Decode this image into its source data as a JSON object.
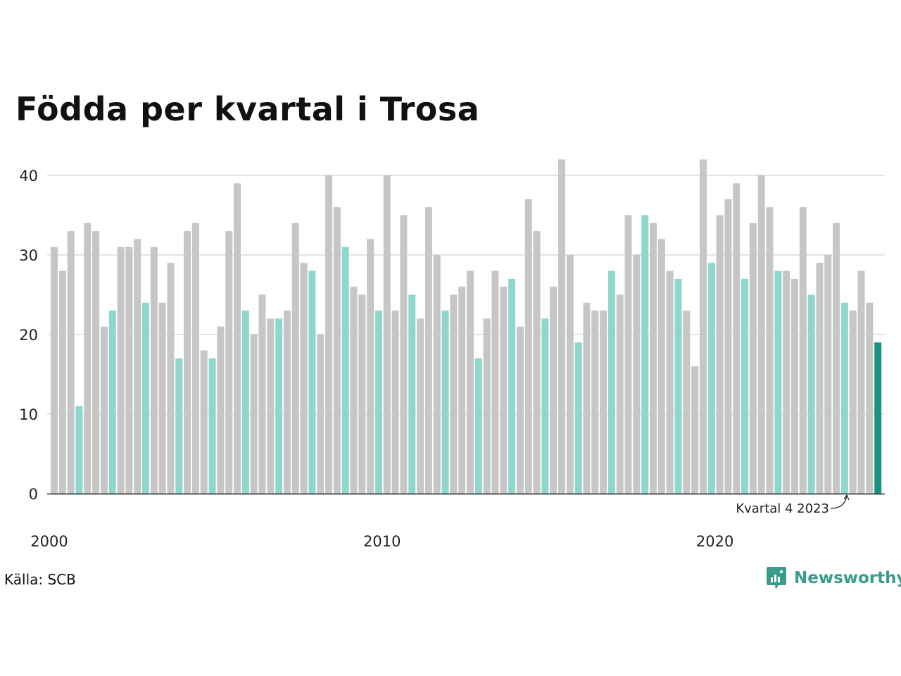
{
  "chart_data": {
    "type": "bar",
    "title": "Födda per kvartal i Trosa",
    "xlabel": "",
    "ylabel": "",
    "ylim": [
      0,
      42
    ],
    "yticks": [
      0,
      10,
      20,
      30,
      40
    ],
    "grid": true,
    "start": "2000 Q1",
    "x_tick_labels": [
      "2000",
      "2010",
      "2020"
    ],
    "values": [
      31,
      28,
      33,
      11,
      34,
      33,
      21,
      23,
      31,
      31,
      32,
      24,
      31,
      24,
      29,
      17,
      33,
      34,
      18,
      17,
      21,
      33,
      39,
      23,
      20,
      25,
      22,
      22,
      23,
      34,
      29,
      28,
      20,
      40,
      36,
      31,
      26,
      25,
      32,
      23,
      40,
      23,
      35,
      25,
      22,
      36,
      30,
      23,
      25,
      26,
      28,
      17,
      22,
      28,
      26,
      27,
      21,
      37,
      33,
      22,
      26,
      42,
      30,
      19,
      24,
      23,
      23,
      28,
      25,
      35,
      30,
      35,
      34,
      32,
      28,
      27,
      23,
      16,
      42,
      29,
      35,
      37,
      39,
      27,
      34,
      40,
      36,
      28,
      28,
      27,
      36,
      25,
      29,
      30,
      34,
      24,
      23,
      28,
      24,
      19
    ],
    "highlight_quarter": 4,
    "colors": {
      "default_bar": "#c6c6c6",
      "highlight_bar": "#8fd6cc",
      "latest_bar": "#1a9480",
      "gridline": "#e3e3e3",
      "axis": "#222222"
    },
    "annotation": {
      "text": "Kvartal 4 2023"
    }
  },
  "footer": {
    "source": "Källa: SCB",
    "brand": "Newsworthy",
    "brand_color": "#3a9c8c"
  }
}
